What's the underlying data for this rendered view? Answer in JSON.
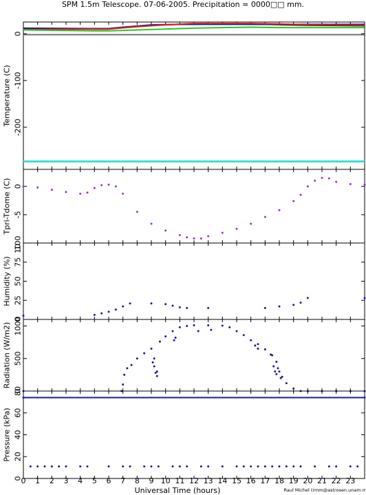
{
  "title": "SPM 1.5m Telescope. 07-06-2005. Precipitation = 0000□□ mm.",
  "xlabel": "Universal Time (hours)",
  "credit": "Raul Michel (rmm@astrosen.unam.mx)",
  "colors": {
    "frame": "#000000",
    "navy": "#1a1a9a",
    "red": "#e02020",
    "green": "#22cc22",
    "black": "#000000",
    "gray": "#707070",
    "cyan": "#40e0d0",
    "purple": "#9a30d8"
  },
  "chart_data": [
    {
      "type": "line",
      "name": "temperature",
      "ylabel": "Temperature (C)",
      "xlim": [
        0,
        24
      ],
      "ylim": [
        -290,
        25
      ],
      "yticks": [
        0,
        -100,
        -200
      ],
      "series": [
        {
          "color_key": "black",
          "x": [
            0,
            5,
            6,
            7,
            9,
            11,
            14,
            17,
            20,
            24
          ],
          "y": [
            11,
            10,
            10,
            13,
            18,
            20,
            21,
            20,
            18,
            17
          ]
        },
        {
          "color_key": "navy",
          "x": [
            0,
            5,
            6,
            7,
            9,
            11,
            14,
            17,
            20,
            24
          ],
          "y": [
            12,
            11,
            11,
            14,
            19,
            20,
            20,
            20,
            20,
            20
          ]
        },
        {
          "color_key": "red",
          "x": [
            0,
            5,
            6,
            8,
            10,
            12,
            14,
            16,
            18,
            20,
            24
          ],
          "y": [
            9,
            10,
            10,
            15,
            19,
            22,
            22,
            22,
            21,
            19,
            18
          ]
        },
        {
          "color_key": "green",
          "x": [
            0,
            5,
            6,
            8,
            10,
            12,
            14,
            16,
            18,
            20,
            24
          ],
          "y": [
            8,
            6,
            6,
            8,
            10,
            12,
            13,
            14,
            13,
            13,
            13
          ]
        },
        {
          "color_key": "gray",
          "x": [
            0,
            24
          ],
          "y": [
            -2,
            -2
          ]
        },
        {
          "color_key": "cyan",
          "x": [
            0,
            24
          ],
          "y": [
            -273,
            -273
          ]
        }
      ]
    },
    {
      "type": "scatter",
      "name": "tpri-tdome",
      "ylabel": "Tpri-Tdome (C)",
      "xlim": [
        0,
        24
      ],
      "ylim": [
        -10,
        3
      ],
      "yticks": [
        0,
        -5
      ],
      "series": [
        {
          "color_key": "purple",
          "x": [
            0,
            1,
            2,
            3,
            4,
            4.5,
            5,
            5.5,
            6,
            6.5,
            7,
            8,
            9,
            10,
            11,
            11.5,
            12,
            12.5,
            13,
            14,
            15,
            16,
            17,
            18,
            19,
            19.5,
            20,
            20.5,
            21,
            21.5,
            22,
            23,
            24
          ],
          "y": [
            0,
            -0.2,
            -0.6,
            -1,
            -1.3,
            -1.1,
            -0.3,
            0.2,
            0.3,
            0,
            -1.3,
            -4.5,
            -6.6,
            -7.8,
            -8.6,
            -9,
            -9.2,
            -9.2,
            -8.8,
            -8.2,
            -7.5,
            -6.6,
            -5.4,
            -4.2,
            -2.6,
            -1.5,
            0,
            1,
            1.5,
            1.4,
            0.8,
            0.4,
            0.3
          ]
        }
      ]
    },
    {
      "type": "scatter",
      "name": "humidity",
      "ylabel": "Humidity (%)",
      "xlim": [
        0,
        24
      ],
      "ylim": [
        0,
        100
      ],
      "yticks": [
        0,
        25,
        50,
        75,
        100
      ],
      "extra_tick_label": "10",
      "series": [
        {
          "color_key": "navy",
          "x": [
            0,
            5,
            5.5,
            6,
            6.5,
            7,
            7.5,
            9,
            10,
            10.5,
            11,
            11.5,
            13,
            17,
            18,
            19,
            19.5,
            20,
            24
          ],
          "y": [
            5,
            6,
            8,
            10,
            13,
            17,
            21,
            21,
            20,
            18,
            16,
            15,
            15,
            15,
            17,
            19,
            22,
            28,
            28
          ]
        }
      ]
    },
    {
      "type": "scatter",
      "name": "radiation",
      "ylabel": "Radiation (W/m2)",
      "xlim": [
        0,
        24
      ],
      "ylim": [
        0,
        1100
      ],
      "yticks": [
        0,
        500,
        1000
      ],
      "series": [
        {
          "color_key": "navy",
          "x": [
            0,
            6.9,
            7,
            7.1,
            7.3,
            7.6,
            8,
            8.5,
            9,
            9.2,
            9.4,
            9.6,
            10,
            10.5,
            11,
            11.5,
            12,
            13,
            14,
            14.5,
            15,
            15.5,
            16,
            16.5,
            17,
            17.5,
            17.8,
            18,
            18.2,
            18.5,
            19,
            19.5,
            20,
            21,
            22,
            23,
            24
          ],
          "y": [
            0,
            0,
            100,
            250,
            350,
            400,
            500,
            580,
            650,
            500,
            300,
            760,
            840,
            920,
            980,
            1000,
            1010,
            1010,
            1005,
            980,
            920,
            860,
            780,
            720,
            640,
            550,
            450,
            300,
            220,
            120,
            40,
            0,
            0,
            0,
            0,
            0,
            0
          ]
        },
        {
          "color_key": "navy",
          "x": [
            9.1,
            9.2,
            9.3,
            9.4,
            10.6,
            10.7,
            12.3,
            13.2,
            16.3,
            16.5,
            17.4,
            17.6,
            17.7,
            17.8,
            17.9,
            18.1
          ],
          "y": [
            440,
            380,
            280,
            230,
            780,
            820,
            920,
            940,
            700,
            650,
            560,
            380,
            300,
            260,
            350,
            200
          ]
        }
      ]
    },
    {
      "type": "scatter",
      "name": "pressure",
      "ylabel": "Pressure (kPa)",
      "xlim": [
        0,
        24
      ],
      "ylim": [
        0,
        80
      ],
      "yticks": [
        0,
        20,
        40,
        60,
        80
      ],
      "series": [
        {
          "color_key": "navy",
          "x": [
            0,
            24
          ],
          "y": [
            74,
            74
          ]
        },
        {
          "color_key": "navy",
          "x": [
            0.5,
            1,
            1.5,
            2,
            2.5,
            3,
            4,
            4.5,
            6,
            7,
            7.5,
            8.5,
            9,
            9.5,
            10.5,
            11,
            11.5,
            12.5,
            13,
            14,
            15,
            15.5,
            16,
            16.5,
            17,
            17.5,
            18,
            18.5,
            19,
            19.5,
            20.5,
            21.5,
            22,
            23,
            23.5
          ],
          "y": [
            11,
            11,
            11,
            11,
            11,
            11,
            11,
            11,
            11,
            11,
            11,
            11,
            11,
            11,
            11,
            11,
            11,
            11,
            11,
            11,
            11,
            11,
            11,
            11,
            11,
            11,
            11,
            11,
            11,
            11,
            11,
            11,
            11,
            11,
            11
          ]
        }
      ]
    }
  ],
  "xticks": [
    "0",
    "1",
    "2",
    "3",
    "4",
    "5",
    "6",
    "7",
    "8",
    "9",
    "10",
    "11",
    "12",
    "13",
    "14",
    "15",
    "16",
    "17",
    "18",
    "19",
    "20",
    "21",
    "22",
    "23"
  ]
}
